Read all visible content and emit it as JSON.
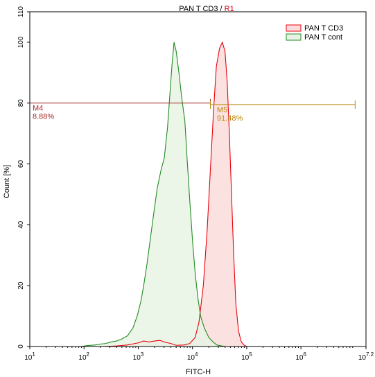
{
  "chart_data": {
    "type": "histogram",
    "title_part1": "PAN T CD3",
    "title_sep": " / ",
    "title_part2": "R1",
    "title_colors": {
      "part1": "#000000",
      "part2": "#d0021b"
    },
    "xlabel": "FITC-H",
    "ylabel": "Count  [%]",
    "x_scale": "log",
    "xlim": [
      1,
      7.2
    ],
    "ylim": [
      0,
      110
    ],
    "y_ticks": [
      0,
      20,
      40,
      60,
      80,
      100,
      110
    ],
    "x_ticks": [
      {
        "value": 1,
        "base": "10",
        "exp": "1"
      },
      {
        "value": 2,
        "base": "10",
        "exp": "2"
      },
      {
        "value": 3,
        "base": "10",
        "exp": "3"
      },
      {
        "value": 4,
        "base": "10",
        "exp": "4"
      },
      {
        "value": 5,
        "base": "10",
        "exp": "5"
      },
      {
        "value": 6,
        "base": "10",
        "exp": "6"
      },
      {
        "value": 7.2,
        "base": "10",
        "exp": "7.2"
      }
    ],
    "legend_position": "top-right",
    "series": [
      {
        "name": "PAN T CD3",
        "color": "#e8000b",
        "fill": "#fbdcdc",
        "points": [
          [
            1.0,
            0
          ],
          [
            1.95,
            0
          ],
          [
            2.35,
            0
          ],
          [
            2.6,
            0.2
          ],
          [
            2.8,
            0.5
          ],
          [
            3.0,
            1.2
          ],
          [
            3.1,
            1.8
          ],
          [
            3.2,
            1.5
          ],
          [
            3.3,
            1.8
          ],
          [
            3.4,
            2.0
          ],
          [
            3.5,
            1.4
          ],
          [
            3.6,
            1.0
          ],
          [
            3.7,
            0.4
          ],
          [
            3.85,
            0.5
          ],
          [
            3.95,
            1.0
          ],
          [
            4.05,
            3.0
          ],
          [
            4.12,
            8
          ],
          [
            4.2,
            20
          ],
          [
            4.27,
            38
          ],
          [
            4.33,
            58
          ],
          [
            4.39,
            78
          ],
          [
            4.44,
            92
          ],
          [
            4.5,
            98
          ],
          [
            4.55,
            100
          ],
          [
            4.6,
            97
          ],
          [
            4.64,
            87
          ],
          [
            4.68,
            70
          ],
          [
            4.72,
            50
          ],
          [
            4.76,
            30
          ],
          [
            4.8,
            14
          ],
          [
            4.85,
            5
          ],
          [
            4.9,
            1.5
          ],
          [
            4.95,
            0.5
          ],
          [
            5.0,
            0
          ],
          [
            7.2,
            0
          ]
        ]
      },
      {
        "name": "PAN T cont",
        "color": "#228b22",
        "fill": "#e7f3e4",
        "points": [
          [
            1.0,
            0
          ],
          [
            1.95,
            0
          ],
          [
            2.05,
            0.3
          ],
          [
            2.2,
            0.5
          ],
          [
            2.3,
            0.8
          ],
          [
            2.4,
            1.0
          ],
          [
            2.5,
            1.5
          ],
          [
            2.6,
            1.8
          ],
          [
            2.7,
            2.5
          ],
          [
            2.8,
            3.5
          ],
          [
            2.9,
            6
          ],
          [
            2.98,
            10
          ],
          [
            3.05,
            15
          ],
          [
            3.1,
            20
          ],
          [
            3.16,
            27
          ],
          [
            3.22,
            35
          ],
          [
            3.28,
            43
          ],
          [
            3.35,
            52
          ],
          [
            3.42,
            58
          ],
          [
            3.48,
            62
          ],
          [
            3.54,
            72
          ],
          [
            3.58,
            82
          ],
          [
            3.62,
            92
          ],
          [
            3.66,
            100
          ],
          [
            3.7,
            97
          ],
          [
            3.75,
            90
          ],
          [
            3.8,
            82
          ],
          [
            3.86,
            74
          ],
          [
            3.9,
            62
          ],
          [
            3.95,
            48
          ],
          [
            4.0,
            35
          ],
          [
            4.05,
            24
          ],
          [
            4.1,
            16
          ],
          [
            4.15,
            10
          ],
          [
            4.22,
            6
          ],
          [
            4.3,
            3
          ],
          [
            4.38,
            1.5
          ],
          [
            4.45,
            0.5
          ],
          [
            4.6,
            0
          ],
          [
            5.0,
            0
          ],
          [
            6.0,
            0
          ],
          [
            7.2,
            0
          ]
        ]
      }
    ],
    "markers": [
      {
        "name": "M4",
        "percent": "8.88%",
        "x_start": 1.0,
        "x_end": 4.33,
        "y": 80,
        "color": "#a52a2a"
      },
      {
        "name": "M5",
        "percent": "91.48%",
        "x_start": 4.33,
        "x_end": 7.0,
        "y": 79.5,
        "color": "#b8860b"
      }
    ]
  }
}
